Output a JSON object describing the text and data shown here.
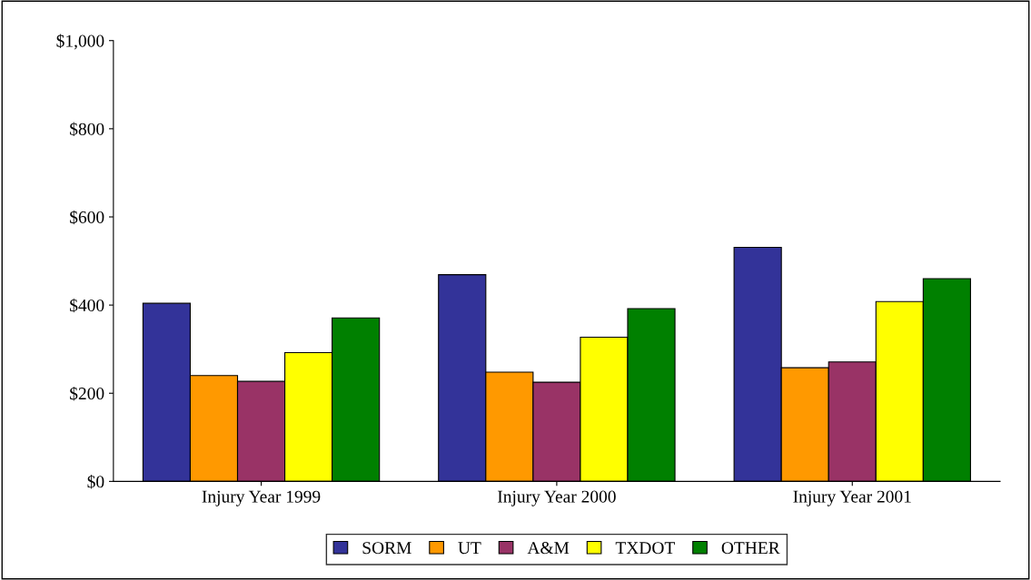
{
  "chart_data": {
    "type": "bar",
    "categories": [
      "Injury Year 1999",
      "Injury Year 2000",
      "Injury Year 2001"
    ],
    "series": [
      {
        "name": "SORM",
        "color": "#333399",
        "values": [
          404,
          469,
          531
        ]
      },
      {
        "name": "UT",
        "color": "#ff9900",
        "values": [
          240,
          248,
          258
        ]
      },
      {
        "name": "A&M",
        "color": "#993366",
        "values": [
          227,
          225,
          271
        ]
      },
      {
        "name": "TXDOT",
        "color": "#ffff00",
        "values": [
          292,
          327,
          408
        ]
      },
      {
        "name": "OTHER",
        "color": "#008000",
        "values": [
          371,
          392,
          460
        ]
      }
    ],
    "ylim": [
      0,
      1000
    ],
    "yticks": [
      {
        "value": 0,
        "label": "$0"
      },
      {
        "value": 200,
        "label": "$200"
      },
      {
        "value": 400,
        "label": "$400"
      },
      {
        "value": 600,
        "label": "$600"
      },
      {
        "value": 800,
        "label": "$800"
      },
      {
        "value": 1000,
        "label": "$1,000"
      }
    ],
    "grid": false,
    "legend": "bottom"
  }
}
